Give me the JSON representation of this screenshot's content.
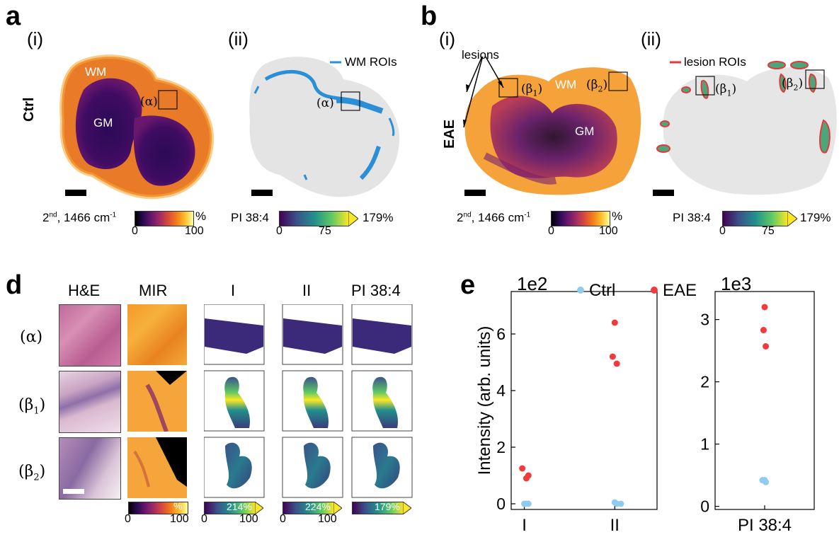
{
  "panel_a": {
    "letter": "a",
    "sub_i": "(i)",
    "sub_ii": "(ii)",
    "row_label": "Ctrl",
    "wm": "WM",
    "gm": "GM",
    "roi_alpha": "(α)",
    "legend_wm": "WM ROIs",
    "cb1_label_main": "2",
    "cb1_label_sup": "nd",
    "cb1_label_rest": ", 1466 cm",
    "cb1_label_exp": "-1",
    "cb1_unit": "%",
    "cb1_min": "0",
    "cb1_max": "100",
    "cb2_label": "PI 38:4",
    "cb2_min": "0",
    "cb2_mid": "75",
    "cb2_max": "179%"
  },
  "panel_b": {
    "letter": "b",
    "sub_i": "(i)",
    "sub_ii": "(ii)",
    "row_label": "EAE",
    "lesions": "lesions",
    "wm": "WM",
    "gm": "GM",
    "beta1": "(β",
    "beta1_sub": "1",
    "beta2": "(β",
    "beta2_sub": "2",
    "close": ")",
    "legend_lesion": "lesion ROIs",
    "cb1_label_main": "2",
    "cb1_label_sup": "nd",
    "cb1_label_rest": ", 1466 cm",
    "cb1_label_exp": "-1",
    "cb1_unit": "%",
    "cb1_min": "0",
    "cb1_max": "100",
    "cb2_label": "PI 38:4",
    "cb2_min": "0",
    "cb2_mid": "75",
    "cb2_max": "179%"
  },
  "panel_d": {
    "letter": "d",
    "col_headers": [
      "H&E",
      "MIR",
      "I",
      "II",
      "PI 38:4"
    ],
    "row_alpha": "(α)",
    "row_beta1": "(β",
    "row_beta1_sub": "1",
    "row_beta2": "(β",
    "row_beta2_sub": "2",
    "row_close": ")",
    "cb_mir": {
      "unit": "%",
      "min": "0",
      "max": "100"
    },
    "cb_I": {
      "max_label": "214%",
      "min": "0",
      "max": "100"
    },
    "cb_II": {
      "max_label": "224%",
      "min": "0",
      "max": "100"
    },
    "cb_PI": {
      "max_label": "179%"
    }
  },
  "colors": {
    "ctrl": "#8ecbee",
    "eae": "#ef3b3b",
    "wm_roi": "#2a8fd6",
    "lesion_roi": "#e23a3a"
  },
  "chart_data": [
    {
      "type": "scatter",
      "letter": "e",
      "title": "",
      "xlabel": "",
      "ylabel": "Intensity (arb. units)",
      "scale_label": "1e2",
      "categories": [
        "I",
        "II"
      ],
      "ylim": [
        -0.2,
        7.5
      ],
      "yticks": [
        "0",
        "2",
        "4",
        "6"
      ],
      "legend": [
        "Ctrl",
        "EAE"
      ],
      "series": [
        {
          "name": "Ctrl",
          "points": [
            [
              0,
              0.0
            ],
            [
              0.05,
              0.0
            ],
            [
              0.1,
              0.0
            ],
            [
              1,
              0.05
            ],
            [
              1.05,
              0.0
            ],
            [
              1.15,
              0.0
            ]
          ]
        },
        {
          "name": "EAE",
          "points": [
            [
              -0.05,
              1.25
            ],
            [
              0.05,
              0.9
            ],
            [
              0.1,
              1.0
            ],
            [
              0.95,
              5.2
            ],
            [
              1.0,
              6.4
            ],
            [
              1.05,
              4.95
            ]
          ]
        }
      ]
    },
    {
      "type": "scatter",
      "title": "",
      "xlabel": "",
      "scale_label": "1e3",
      "categories": [
        "PI 38:4"
      ],
      "ylim": [
        -0.05,
        3.45
      ],
      "yticks": [
        "0",
        "1",
        "2",
        "3"
      ],
      "series": [
        {
          "name": "Ctrl",
          "points": [
            [
              -0.1,
              0.42
            ],
            [
              0.0,
              0.42
            ],
            [
              0.05,
              0.39
            ]
          ]
        },
        {
          "name": "EAE",
          "points": [
            [
              -0.05,
              2.83
            ],
            [
              0.0,
              3.2
            ],
            [
              0.05,
              2.57
            ]
          ]
        }
      ]
    }
  ]
}
